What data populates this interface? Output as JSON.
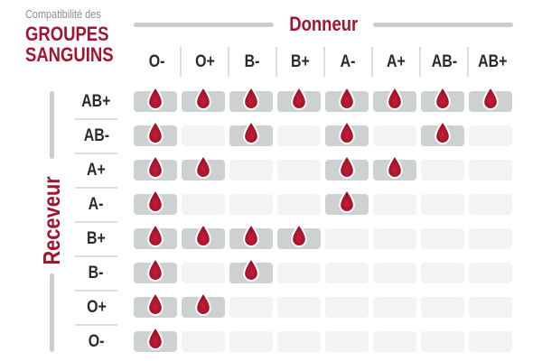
{
  "title": {
    "prefix": "Compatibilité des",
    "line1": "GROUPES",
    "line2": "SANGUINS"
  },
  "axis": {
    "donor": "Donneur",
    "receiver": "Receveur"
  },
  "icons": {
    "compatible_marker": "blood-drop-icon"
  },
  "colors": {
    "accent_red": "#A3152F",
    "text_dark": "#2B2B2B",
    "subtitle_gray": "#8C8C8C",
    "line_gray": "#C9CDCD",
    "separator_gray": "#DCDEDE",
    "cell_filled": "#CDD1D1",
    "cell_empty": "#F2F4F4",
    "drop_gradient": [
      "#C32037",
      "#A5122B",
      "#8F0D20"
    ],
    "drop_outline": "#FFFFFF"
  },
  "chart_data": {
    "type": "heatmap",
    "title": "Compatibilité des GROUPES SANGUINS",
    "x_title": "Donneur",
    "y_title": "Receveur",
    "donors": [
      "O-",
      "O+",
      "B-",
      "B+",
      "A-",
      "A+",
      "AB-",
      "AB+"
    ],
    "receivers": [
      "AB+",
      "AB-",
      "A+",
      "A-",
      "B+",
      "B-",
      "O+",
      "O-"
    ],
    "marker_meaning": "blood drop = donor compatible with receiver",
    "compatibility": [
      [
        1,
        1,
        1,
        1,
        1,
        1,
        1,
        1
      ],
      [
        1,
        0,
        1,
        0,
        1,
        0,
        1,
        0
      ],
      [
        1,
        1,
        0,
        0,
        1,
        1,
        0,
        0
      ],
      [
        1,
        0,
        0,
        0,
        1,
        0,
        0,
        0
      ],
      [
        1,
        1,
        1,
        1,
        0,
        0,
        0,
        0
      ],
      [
        1,
        0,
        1,
        0,
        0,
        0,
        0,
        0
      ],
      [
        1,
        1,
        0,
        0,
        0,
        0,
        0,
        0
      ],
      [
        1,
        0,
        0,
        0,
        0,
        0,
        0,
        0
      ]
    ]
  }
}
